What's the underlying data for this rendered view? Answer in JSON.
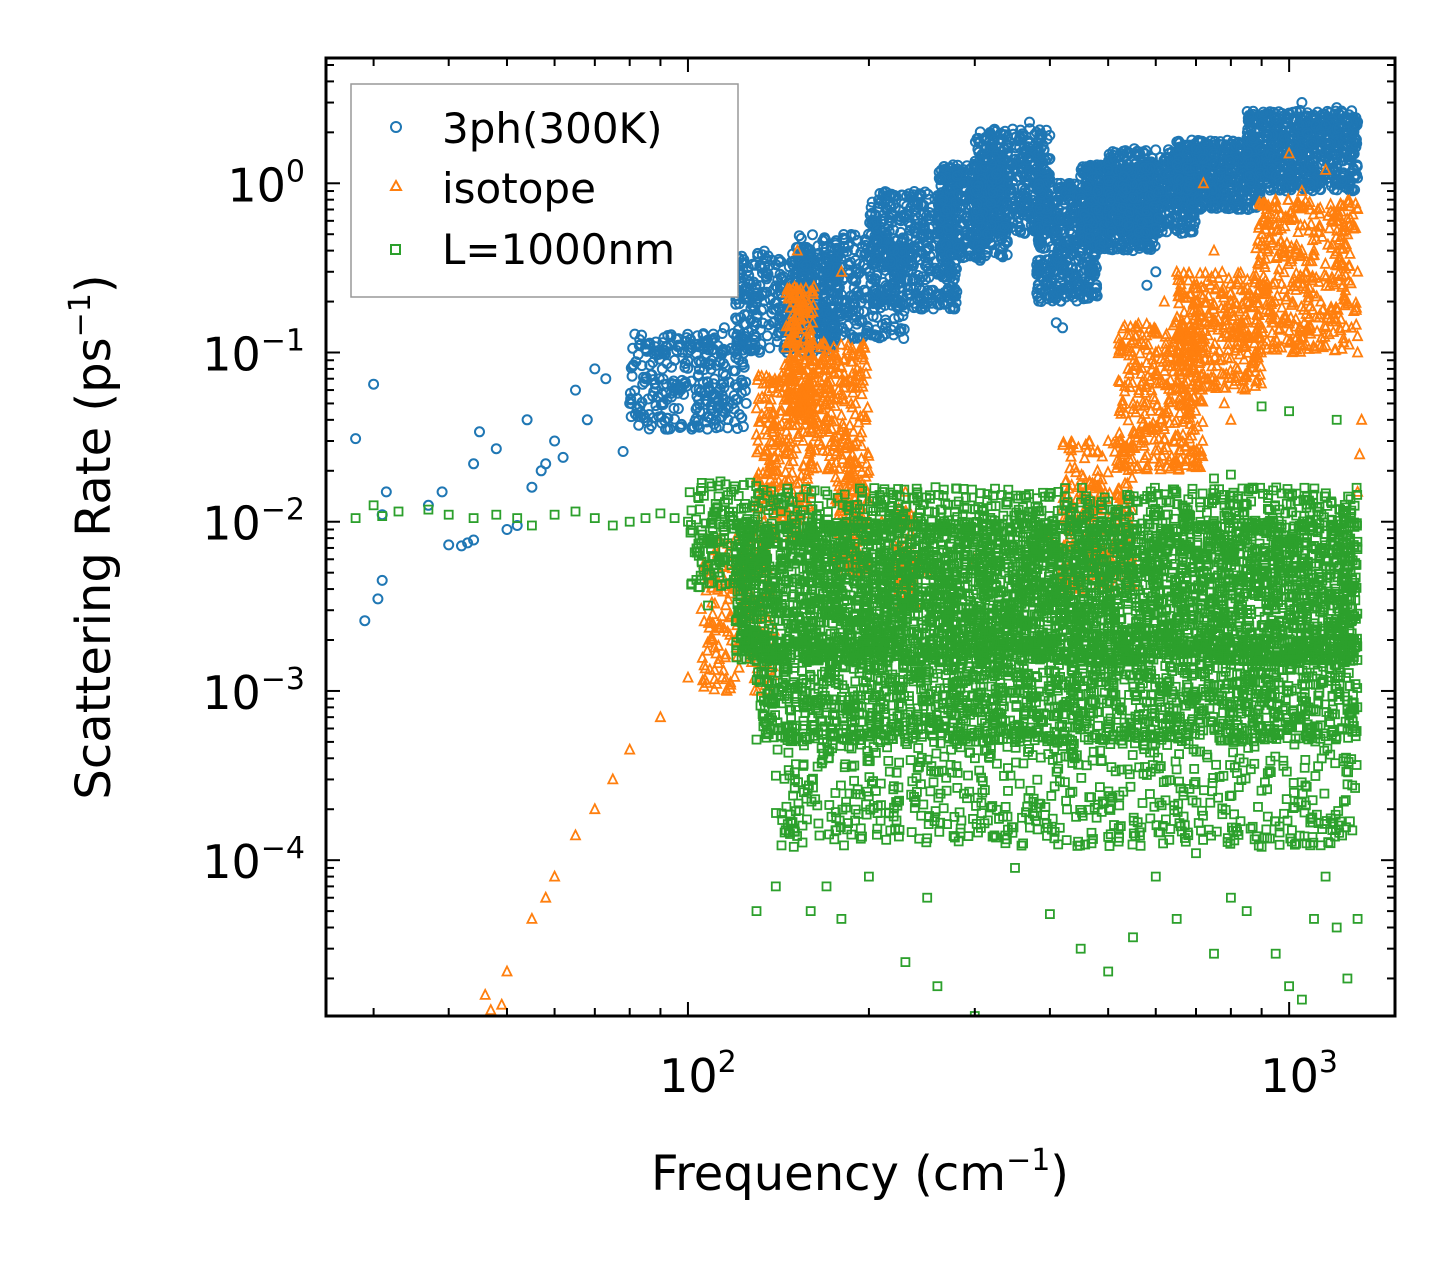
{
  "chart_data": {
    "type": "scatter",
    "xscale": "log",
    "yscale": "log",
    "xlim": [
      25,
      1500
    ],
    "ylim": [
      1.2e-05,
      5.5
    ],
    "xlabel": "Frequency",
    "xlabel_unit_base": "cm",
    "xlabel_unit_exp": "−1",
    "ylabel": "Scattering Rate",
    "ylabel_unit_base": "ps",
    "ylabel_unit_exp": "−1",
    "x_ticks": [
      {
        "value": 100,
        "base": "10",
        "exp": "2"
      },
      {
        "value": 1000,
        "base": "10",
        "exp": "3"
      }
    ],
    "y_ticks": [
      {
        "value": 1,
        "base": "10",
        "exp": "0"
      },
      {
        "value": 0.1,
        "base": "10",
        "exp": "−1"
      },
      {
        "value": 0.01,
        "base": "10",
        "exp": "−2"
      },
      {
        "value": 0.001,
        "base": "10",
        "exp": "−3"
      },
      {
        "value": 0.0001,
        "base": "10",
        "exp": "−4"
      }
    ],
    "legend_position": "upper-left",
    "series": [
      {
        "name": "3ph(300K)",
        "marker": "circle",
        "color": "#1f77b4",
        "points": [
          [
            28,
            0.031
          ],
          [
            30,
            0.065
          ],
          [
            29,
            0.0026
          ],
          [
            30.5,
            0.0035
          ],
          [
            31,
            0.0045
          ],
          [
            31.5,
            0.015
          ],
          [
            31,
            0.011
          ],
          [
            37,
            0.0125
          ],
          [
            39,
            0.015
          ],
          [
            40,
            0.0073
          ],
          [
            42,
            0.0072
          ],
          [
            43,
            0.0075
          ],
          [
            44,
            0.022
          ],
          [
            44,
            0.0078
          ],
          [
            45,
            0.034
          ],
          [
            48,
            0.027
          ],
          [
            50,
            0.009
          ],
          [
            52,
            0.0095
          ],
          [
            54,
            0.04
          ],
          [
            55,
            0.016
          ],
          [
            57,
            0.02
          ],
          [
            58,
            0.022
          ],
          [
            60,
            0.03
          ],
          [
            62,
            0.024
          ],
          [
            65,
            0.06
          ],
          [
            68,
            0.04
          ],
          [
            70,
            0.08
          ],
          [
            73,
            0.07
          ],
          [
            78,
            0.026
          ],
          [
            80,
            0.05
          ],
          [
            83,
            0.11
          ],
          [
            85,
            0.07
          ],
          [
            90,
            0.1
          ],
          [
            95,
            0.09
          ],
          [
            100,
            0.1
          ],
          [
            105,
            0.11
          ],
          [
            110,
            0.12
          ],
          [
            115,
            0.14
          ],
          [
            120,
            0.16
          ],
          [
            125,
            0.05
          ],
          [
            130,
            0.15
          ],
          [
            140,
            0.18
          ],
          [
            150,
            0.2
          ],
          [
            160,
            0.25
          ],
          [
            170,
            0.3
          ],
          [
            180,
            0.22
          ],
          [
            190,
            0.35
          ],
          [
            200,
            0.3
          ],
          [
            210,
            0.6
          ],
          [
            220,
            0.4
          ],
          [
            230,
            0.35
          ],
          [
            250,
            0.45
          ],
          [
            270,
            0.7
          ],
          [
            280,
            1.1
          ],
          [
            300,
            0.9
          ],
          [
            320,
            1.3
          ],
          [
            340,
            1.7
          ],
          [
            360,
            1.9
          ],
          [
            370,
            2.3
          ],
          [
            380,
            2.0
          ],
          [
            400,
            1.4
          ],
          [
            410,
            0.15
          ],
          [
            420,
            0.14
          ],
          [
            430,
            0.8
          ],
          [
            450,
            1.1
          ],
          [
            480,
            0.9
          ],
          [
            500,
            1.2
          ],
          [
            520,
            0.6
          ],
          [
            550,
            0.4
          ],
          [
            580,
            0.25
          ],
          [
            600,
            0.3
          ],
          [
            620,
            0.8
          ],
          [
            650,
            1.3
          ],
          [
            700,
            1.6
          ],
          [
            720,
            1.4
          ],
          [
            750,
            1.5
          ],
          [
            780,
            0.9
          ],
          [
            800,
            1.2
          ],
          [
            830,
            1.6
          ],
          [
            860,
            1.1
          ],
          [
            900,
            2.2
          ],
          [
            950,
            2.4
          ],
          [
            980,
            1.9
          ],
          [
            1000,
            2.6
          ],
          [
            1050,
            3.0
          ],
          [
            1100,
            2.5
          ],
          [
            1150,
            2.2
          ],
          [
            1200,
            2.8
          ],
          [
            1250,
            2.3
          ]
        ],
        "bands": [
          {
            "x": [
              80,
              125
            ],
            "y": [
              0.035,
              0.13
            ],
            "n": 300
          },
          {
            "x": [
              120,
              180
            ],
            "y": [
              0.1,
              0.4
            ],
            "n": 400
          },
          {
            "x": [
              150,
              230
            ],
            "y": [
              0.12,
              0.5
            ],
            "n": 400
          },
          {
            "x": [
              200,
              280
            ],
            "y": [
              0.18,
              0.9
            ],
            "n": 400
          },
          {
            "x": [
              260,
              340
            ],
            "y": [
              0.35,
              1.3
            ],
            "n": 400
          },
          {
            "x": [
              300,
              400
            ],
            "y": [
              0.5,
              2.1
            ],
            "n": 450
          },
          {
            "x": [
              380,
              480
            ],
            "y": [
              0.2,
              1.0
            ],
            "n": 450
          },
          {
            "x": [
              450,
              600
            ],
            "y": [
              0.4,
              1.3
            ],
            "n": 500
          },
          {
            "x": [
              500,
              700
            ],
            "y": [
              0.5,
              1.6
            ],
            "n": 500
          },
          {
            "x": [
              650,
              900
            ],
            "y": [
              0.7,
              1.8
            ],
            "n": 500
          },
          {
            "x": [
              850,
              1300
            ],
            "y": [
              0.9,
              2.7
            ],
            "n": 650
          }
        ]
      },
      {
        "name": "isotope",
        "marker": "triangle",
        "color": "#ff7f0e",
        "points": [
          [
            46,
            1.6e-05
          ],
          [
            47,
            1.3e-05
          ],
          [
            49,
            1.4e-05
          ],
          [
            50,
            2.2e-05
          ],
          [
            55,
            4.5e-05
          ],
          [
            58,
            6e-05
          ],
          [
            60,
            8e-05
          ],
          [
            65,
            0.00014
          ],
          [
            70,
            0.0002
          ],
          [
            75,
            0.0003
          ],
          [
            80,
            0.00045
          ],
          [
            90,
            0.0007
          ],
          [
            100,
            0.0012
          ],
          [
            110,
            0.002
          ],
          [
            120,
            0.004
          ],
          [
            130,
            0.008
          ],
          [
            140,
            0.02
          ],
          [
            150,
            0.1
          ],
          [
            152,
            0.4
          ],
          [
            155,
            0.2
          ],
          [
            165,
            0.03
          ],
          [
            170,
            0.1
          ],
          [
            180,
            0.3
          ],
          [
            190,
            0.05
          ],
          [
            200,
            0.02
          ],
          [
            210,
            0.01
          ],
          [
            220,
            0.005
          ],
          [
            230,
            0.015
          ],
          [
            250,
            0.005
          ],
          [
            300,
            0.006
          ],
          [
            400,
            0.008
          ],
          [
            420,
            0.012
          ],
          [
            450,
            0.015
          ],
          [
            480,
            0.02
          ],
          [
            500,
            0.03
          ],
          [
            550,
            0.05
          ],
          [
            600,
            0.1
          ],
          [
            620,
            0.2
          ],
          [
            650,
            0.3
          ],
          [
            700,
            0.2
          ],
          [
            720,
            1.0
          ],
          [
            750,
            0.4
          ],
          [
            780,
            0.05
          ],
          [
            800,
            0.04
          ],
          [
            850,
            0.2
          ],
          [
            880,
            0.15
          ],
          [
            900,
            0.5
          ],
          [
            950,
            0.8
          ],
          [
            1000,
            1.5
          ],
          [
            1050,
            0.9
          ],
          [
            1100,
            0.4
          ],
          [
            1150,
            1.2
          ],
          [
            1200,
            0.6
          ],
          [
            1250,
            0.2
          ],
          [
            1300,
            0.1
          ],
          [
            1320,
            0.04
          ],
          [
            1300,
            0.015
          ],
          [
            1310,
            0.025
          ]
        ],
        "bands": [
          {
            "x": [
              105,
              140
            ],
            "y": [
              0.001,
              0.008
            ],
            "n": 180
          },
          {
            "x": [
              130,
              160
            ],
            "y": [
              0.008,
              0.08
            ],
            "n": 250
          },
          {
            "x": [
              145,
              162
            ],
            "y": [
              0.04,
              0.25
            ],
            "n": 180
          },
          {
            "x": [
              160,
              200
            ],
            "y": [
              0.02,
              0.12
            ],
            "n": 220
          },
          {
            "x": [
              175,
              200
            ],
            "y": [
              0.005,
              0.02
            ],
            "n": 120
          },
          {
            "x": [
              220,
              240
            ],
            "y": [
              0.003,
              0.012
            ],
            "n": 80
          },
          {
            "x": [
              420,
              550
            ],
            "y": [
              0.004,
              0.03
            ],
            "n": 220
          },
          {
            "x": [
              520,
              720
            ],
            "y": [
              0.02,
              0.15
            ],
            "n": 350
          },
          {
            "x": [
              650,
              900
            ],
            "y": [
              0.06,
              0.3
            ],
            "n": 300
          },
          {
            "x": [
              880,
              1300
            ],
            "y": [
              0.1,
              0.8
            ],
            "n": 400
          }
        ]
      },
      {
        "name": "L=1000nm",
        "marker": "square",
        "color": "#2ca02c",
        "points": [
          [
            28,
            0.0105
          ],
          [
            30,
            0.0125
          ],
          [
            31,
            0.0108
          ],
          [
            33,
            0.0115
          ],
          [
            37,
            0.0118
          ],
          [
            40,
            0.011
          ],
          [
            44,
            0.0105
          ],
          [
            48,
            0.011
          ],
          [
            52,
            0.0105
          ],
          [
            55,
            0.0095
          ],
          [
            60,
            0.011
          ],
          [
            65,
            0.0115
          ],
          [
            70,
            0.0105
          ],
          [
            75,
            0.0095
          ],
          [
            80,
            0.01
          ],
          [
            85,
            0.0105
          ],
          [
            90,
            0.0112
          ],
          [
            95,
            0.0105
          ],
          [
            100,
            0.01
          ],
          [
            105,
            0.0048
          ],
          [
            108,
            0.0032
          ],
          [
            110,
            0.0092
          ],
          [
            118,
            0.0072
          ],
          [
            130,
            5e-05
          ],
          [
            140,
            7e-05
          ],
          [
            150,
            0.00012
          ],
          [
            160,
            5e-05
          ],
          [
            170,
            7e-05
          ],
          [
            180,
            4.5e-05
          ],
          [
            200,
            8e-05
          ],
          [
            230,
            2.5e-05
          ],
          [
            250,
            6e-05
          ],
          [
            260,
            1.8e-05
          ],
          [
            300,
            1.2e-05
          ],
          [
            350,
            9e-05
          ],
          [
            400,
            4.8e-05
          ],
          [
            450,
            3e-05
          ],
          [
            500,
            2.2e-05
          ],
          [
            550,
            3.5e-05
          ],
          [
            600,
            8e-05
          ],
          [
            650,
            4.5e-05
          ],
          [
            700,
            0.00011
          ],
          [
            750,
            2.8e-05
          ],
          [
            800,
            6e-05
          ],
          [
            850,
            5e-05
          ],
          [
            900,
            0.00012
          ],
          [
            950,
            2.8e-05
          ],
          [
            1000,
            1.8e-05
          ],
          [
            1050,
            1.5e-05
          ],
          [
            1100,
            4.5e-05
          ],
          [
            1150,
            8e-05
          ],
          [
            1200,
            4e-05
          ],
          [
            1250,
            2e-05
          ],
          [
            1300,
            4.5e-05
          ],
          [
            900,
            0.048
          ],
          [
            1000,
            0.045
          ],
          [
            1200,
            0.04
          ],
          [
            750,
            0.018
          ],
          [
            800,
            0.019
          ]
        ],
        "bands": [
          {
            "x": [
              100,
              130
            ],
            "y": [
              0.004,
              0.018
            ],
            "n": 160
          },
          {
            "x": [
              120,
              1300
            ],
            "y": [
              0.0015,
              0.01
            ],
            "n": 4000
          },
          {
            "x": [
              130,
              1300
            ],
            "y": [
              0.0005,
              0.002
            ],
            "n": 1800
          },
          {
            "x": [
              140,
              1300
            ],
            "y": [
              0.00012,
              0.0006
            ],
            "n": 700
          },
          {
            "x": [
              130,
              1300
            ],
            "y": [
              0.009,
              0.016
            ],
            "n": 500
          }
        ]
      }
    ]
  }
}
